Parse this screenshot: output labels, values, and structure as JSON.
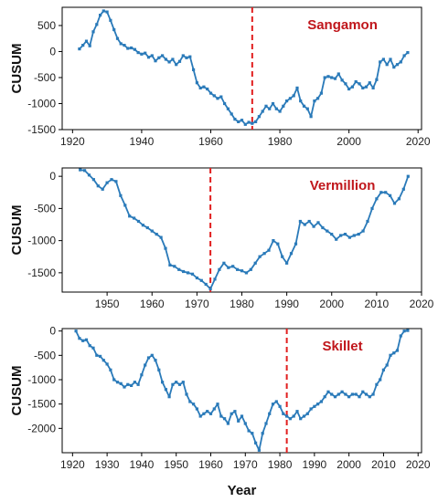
{
  "colors": {
    "series": "#2a7ab9",
    "marker_line": "#e11f1f",
    "panel_label": "#c0161b"
  },
  "chart_data": [
    {
      "type": "line",
      "title": "Sangamon",
      "ylabel": "CUSUM",
      "xlabel": "",
      "xlim": [
        1917,
        2021
      ],
      "ylim": [
        -1500,
        850
      ],
      "xticks": [
        1920,
        1940,
        1960,
        1980,
        2000,
        2020
      ],
      "yticks": [
        500,
        0,
        -500,
        -1000,
        -1500
      ],
      "change_point": 1972,
      "x": [
        1922,
        1923,
        1924,
        1925,
        1926,
        1927,
        1928,
        1929,
        1930,
        1931,
        1932,
        1933,
        1934,
        1935,
        1936,
        1937,
        1938,
        1939,
        1940,
        1941,
        1942,
        1943,
        1944,
        1945,
        1946,
        1947,
        1948,
        1949,
        1950,
        1951,
        1952,
        1953,
        1954,
        1955,
        1956,
        1957,
        1958,
        1959,
        1960,
        1961,
        1962,
        1963,
        1964,
        1965,
        1966,
        1967,
        1968,
        1969,
        1970,
        1971,
        1972,
        1973,
        1974,
        1975,
        1976,
        1977,
        1978,
        1979,
        1980,
        1981,
        1982,
        1983,
        1984,
        1985,
        1986,
        1987,
        1988,
        1989,
        1990,
        1991,
        1992,
        1993,
        1994,
        1995,
        1996,
        1997,
        1998,
        1999,
        2000,
        2001,
        2002,
        2003,
        2004,
        2005,
        2006,
        2007,
        2008,
        2009,
        2010,
        2011,
        2012,
        2013,
        2014,
        2015,
        2016,
        2017
      ],
      "y": [
        50,
        120,
        200,
        110,
        380,
        520,
        700,
        780,
        760,
        600,
        420,
        250,
        150,
        120,
        60,
        70,
        40,
        -20,
        -50,
        -30,
        -110,
        -80,
        -180,
        -120,
        -80,
        -150,
        -200,
        -150,
        -250,
        -190,
        -80,
        -120,
        -100,
        -350,
        -600,
        -700,
        -680,
        -720,
        -800,
        -850,
        -900,
        -870,
        -1000,
        -1100,
        -1200,
        -1300,
        -1350,
        -1320,
        -1400,
        -1360,
        -1380,
        -1350,
        -1250,
        -1150,
        -1050,
        -1100,
        -1000,
        -1100,
        -1150,
        -1050,
        -950,
        -900,
        -850,
        -700,
        -950,
        -1050,
        -1100,
        -1250,
        -950,
        -900,
        -800,
        -500,
        -480,
        -500,
        -520,
        -430,
        -550,
        -620,
        -720,
        -680,
        -580,
        -620,
        -700,
        -680,
        -600,
        -700,
        -540,
        -200,
        -150,
        -250,
        -150,
        -300,
        -250,
        -200,
        -80,
        -20
      ]
    },
    {
      "type": "line",
      "title": "Vermillion",
      "ylabel": "CUSUM",
      "xlabel": "",
      "xlim": [
        1940,
        2020
      ],
      "ylim": [
        -1800,
        130
      ],
      "xticks": [
        1950,
        1960,
        1970,
        1980,
        1990,
        2000,
        2010,
        2020
      ],
      "yticks": [
        0,
        -500,
        -1000,
        -1500
      ],
      "change_point": 1973,
      "x": [
        1944,
        1945,
        1946,
        1947,
        1948,
        1949,
        1950,
        1951,
        1952,
        1953,
        1954,
        1955,
        1956,
        1957,
        1958,
        1959,
        1960,
        1961,
        1962,
        1963,
        1964,
        1965,
        1966,
        1967,
        1968,
        1969,
        1970,
        1971,
        1972,
        1973,
        1974,
        1975,
        1976,
        1977,
        1978,
        1979,
        1980,
        1981,
        1982,
        1983,
        1984,
        1985,
        1986,
        1987,
        1988,
        1989,
        1990,
        1991,
        1992,
        1993,
        1994,
        1995,
        1996,
        1997,
        1998,
        1999,
        2000,
        2001,
        2002,
        2003,
        2004,
        2005,
        2006,
        2007,
        2008,
        2009,
        2010,
        2011,
        2012,
        2013,
        2014,
        2015,
        2016,
        2017
      ],
      "y": [
        100,
        90,
        20,
        -50,
        -150,
        -200,
        -100,
        -50,
        -80,
        -300,
        -450,
        -620,
        -650,
        -700,
        -760,
        -800,
        -850,
        -900,
        -950,
        -1120,
        -1380,
        -1400,
        -1450,
        -1480,
        -1500,
        -1520,
        -1580,
        -1620,
        -1680,
        -1750,
        -1600,
        -1450,
        -1350,
        -1420,
        -1400,
        -1450,
        -1470,
        -1500,
        -1450,
        -1350,
        -1250,
        -1200,
        -1150,
        -1000,
        -1050,
        -1250,
        -1350,
        -1200,
        -1050,
        -700,
        -750,
        -700,
        -780,
        -720,
        -800,
        -850,
        -900,
        -980,
        -920,
        -900,
        -950,
        -920,
        -900,
        -850,
        -700,
        -500,
        -350,
        -250,
        -250,
        -300,
        -420,
        -350,
        -200,
        0
      ]
    },
    {
      "type": "line",
      "title": "Skillet",
      "ylabel": "CUSUM",
      "xlabel": "Year",
      "xlim": [
        1917,
        2021
      ],
      "ylim": [
        -2500,
        50
      ],
      "xticks": [
        1920,
        1930,
        1940,
        1950,
        1960,
        1970,
        1980,
        1990,
        2000,
        2010,
        2020
      ],
      "yticks": [
        0,
        -500,
        -1000,
        -1500,
        -2000
      ],
      "change_point": 1982,
      "x": [
        1921,
        1922,
        1923,
        1924,
        1925,
        1926,
        1927,
        1928,
        1929,
        1930,
        1931,
        1932,
        1933,
        1934,
        1935,
        1936,
        1937,
        1938,
        1939,
        1940,
        1941,
        1942,
        1943,
        1944,
        1945,
        1946,
        1947,
        1948,
        1949,
        1950,
        1951,
        1952,
        1953,
        1954,
        1955,
        1956,
        1957,
        1958,
        1959,
        1960,
        1961,
        1962,
        1963,
        1964,
        1965,
        1966,
        1967,
        1968,
        1969,
        1970,
        1971,
        1972,
        1973,
        1974,
        1975,
        1976,
        1977,
        1978,
        1979,
        1980,
        1981,
        1982,
        1983,
        1984,
        1985,
        1986,
        1987,
        1988,
        1989,
        1990,
        1991,
        1992,
        1993,
        1994,
        1995,
        1996,
        1997,
        1998,
        1999,
        2000,
        2001,
        2002,
        2003,
        2004,
        2005,
        2006,
        2007,
        2008,
        2009,
        2010,
        2011,
        2012,
        2013,
        2014,
        2015,
        2016,
        2017
      ],
      "y": [
        0,
        -150,
        -200,
        -180,
        -300,
        -350,
        -500,
        -520,
        -600,
        -680,
        -800,
        -1000,
        -1050,
        -1080,
        -1150,
        -1100,
        -1120,
        -1050,
        -1100,
        -900,
        -700,
        -550,
        -500,
        -600,
        -800,
        -1050,
        -1200,
        -1350,
        -1100,
        -1050,
        -1100,
        -1050,
        -1300,
        -1450,
        -1500,
        -1600,
        -1750,
        -1700,
        -1650,
        -1700,
        -1600,
        -1500,
        -1750,
        -1800,
        -1900,
        -1700,
        -1650,
        -1850,
        -1750,
        -1900,
        -2050,
        -2100,
        -2300,
        -2450,
        -2100,
        -1900,
        -1700,
        -1500,
        -1450,
        -1550,
        -1700,
        -1750,
        -1800,
        -1750,
        -1650,
        -1800,
        -1750,
        -1700,
        -1600,
        -1550,
        -1500,
        -1450,
        -1350,
        -1250,
        -1300,
        -1350,
        -1300,
        -1250,
        -1300,
        -1350,
        -1300,
        -1300,
        -1350,
        -1250,
        -1300,
        -1350,
        -1300,
        -1100,
        -1000,
        -800,
        -700,
        -500,
        -450,
        -400,
        -100,
        0,
        10
      ]
    }
  ]
}
